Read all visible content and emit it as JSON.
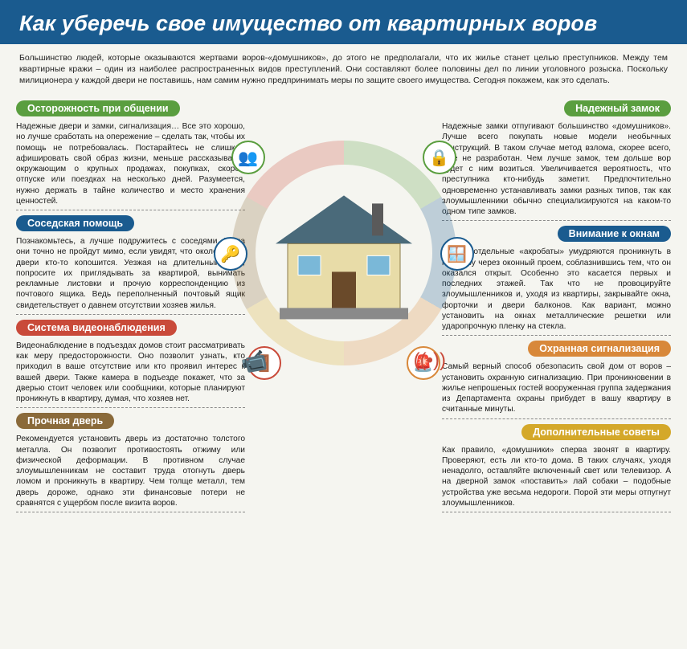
{
  "header": {
    "title": "Как уберечь свое имущество от квартирных воров"
  },
  "intro": "Большинство людей, которые оказываются жертвами воров-«домушников», до этого не предполагали, что их жилье станет целью преступников. Между тем квартирные кражи – один из наиболее распространенных видов преступлений. Они составляют более половины дел по линии уголовного розыска. Поскольку милиционера у каждой двери не поставишь, нам самим нужно предпринимать меры по защите своего имущества. Сегодня покажем, как это сделать.",
  "colors": {
    "header_bg": "#1a5b8f",
    "green": "#5a9e3f",
    "blue": "#1a5b8f",
    "red": "#c94a3a",
    "brown": "#8a6a3a",
    "orange": "#d8883a",
    "yellow": "#d4a82a",
    "page_bg": "#f5f5f0"
  },
  "left": [
    {
      "title": "Осторожность при общении",
      "color": "green",
      "body": "Надежные двери и замки, сигнализация… Все это хорошо, но лучше сработать на опережение – сделать так, чтобы их помощь не потребовалась. Постарайтесь не слишком афишировать свой образ жизни, меньше рассказывайте окружающим о крупных продажах, покупках, скором отпуске или поездках на несколько дней. Разумеется, нужно держать в тайне количество и место хранения ценностей."
    },
    {
      "title": "Соседская помощь",
      "color": "blue",
      "body": "Познакомьтесь, а лучше подружитесь с соседями. Тогда они точно не пройдут мимо, если увидят, что около вашей двери кто-то копошится. Уезжая на длительный срок, попросите их приглядывать за квартирой, вынимать рекламные листовки и прочую корреспонденцию из почтового ящика. Ведь переполненный почтовый ящик свидетельствует о давнем отсутствии хозяев жилья."
    },
    {
      "title": "Система видеонаблюдения",
      "color": "red",
      "body": "Видеонаблюдение в подъездах домов стоит рассматривать как меру предосторожности. Оно позволит узнать, кто приходил в ваше отсутствие или кто проявил интерес к вашей двери. Также камера в подъезде покажет, что за дверью стоит человек или сообщники, которые планируют проникнуть в квартиру, думая, что хозяев нет."
    },
    {
      "title": "Прочная дверь",
      "color": "brown",
      "body": "Рекомендуется установить дверь из достаточно толстого металла. Он позволит противостоять отжиму или физической деформации. В противном случае злоумышленникам не составит труда отогнуть дверь ломом и проникнуть в квартиру. Чем толще металл, тем дверь дороже, однако эти финансовые потери не сравнятся с ущербом после визита воров."
    }
  ],
  "right": [
    {
      "title": "Надежный замок",
      "color": "green",
      "body": "Надежные замки отпугивают большинство «домушников». Лучше всего покупать новые модели необычных конструкций. В таком случае метод взлома, скорее всего, еще не разработан. Чем лучше замок, тем дольше вор будет с ним возиться. Увеличивается вероятность, что преступника кто-нибудь заметит. Предпочтительно одновременно устанавливать замки разных типов, так как злоумышленники обычно специализируются на каком-то одном типе замков."
    },
    {
      "title": "Внимание к окнам",
      "color": "blue",
      "body": "Иногда отдельные «акробаты» умудряются проникнуть в квартиру через оконный проем, соблазнившись тем, что он оказался открыт. Особенно это касается первых и последних этажей. Так что не провоцируйте злоумышленников и, уходя из квартиры, закрывайте окна, форточки и двери балконов. Как вариант, можно установить на окнах металлические решетки или ударопрочную пленку на стекла."
    },
    {
      "title": "Охранная сигнализация",
      "color": "orange",
      "body": "Самый верный способ обезопасить свой дом от воров – установить охранную сигнализацию. При проникновении в жилье непрошеных гостей вооруженная группа задержания из Департамента охраны прибудет в вашу квартиру в считанные минуты."
    },
    {
      "title": "Дополнительные советы",
      "color": "yellow",
      "body": "Как правило, «домушники» сперва звонят в квартиру. Проверяют, есть ли кто-то дома. В таких случаях, уходя ненадолго, оставляйте включенный свет или телевизор. А на дверной замок «поставить» лай собаки – подобные устройства уже весьма недороги. Порой эти меры отпугнут злоумышленников."
    }
  ],
  "icons": {
    "people": "👥",
    "lock": "🔒",
    "key": "🔑",
    "window": "🪟",
    "door": "🚪",
    "alarm": "🚨",
    "camera": "📹",
    "motion": "((•))"
  }
}
